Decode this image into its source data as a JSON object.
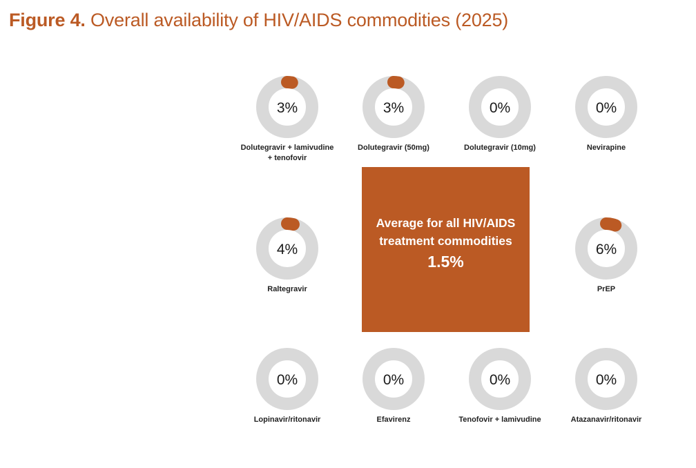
{
  "title": {
    "prefix": "Figure 4.",
    "text": "Overall availability of HIV/AIDS commodities (2025)"
  },
  "colors": {
    "accent": "#bb5a24",
    "ring": "#d9d9d9",
    "label": "#222222"
  },
  "chart_data": {
    "type": "donut-grid",
    "title": "Figure 4. Overall availability of HIV/AIDS commodities (2025)",
    "unit": "%",
    "items": [
      {
        "label": [
          "Dolutegravir + lamivudine",
          "+ tenofovir"
        ],
        "value": 3,
        "display": "3%"
      },
      {
        "label": [
          "Dolutegravir (50mg)"
        ],
        "value": 3,
        "display": "3%"
      },
      {
        "label": [
          "Dolutegravir (10mg)"
        ],
        "value": 0,
        "display": "0%"
      },
      {
        "label": [
          "Nevirapine"
        ],
        "value": 0,
        "display": "0%"
      },
      {
        "label": [
          "Raltegravir"
        ],
        "value": 4,
        "display": "4%"
      },
      {
        "label": [
          "PrEP"
        ],
        "value": 6,
        "display": "6%"
      },
      {
        "label": [
          "Lopinavir/ritonavir"
        ],
        "value": 0,
        "display": "0%"
      },
      {
        "label": [
          "Efavirenz"
        ],
        "value": 0,
        "display": "0%"
      },
      {
        "label": [
          "Tenofovir + lamivudine"
        ],
        "value": 0,
        "display": "0%"
      },
      {
        "label": [
          "Atazanavir/ritonavir"
        ],
        "value": 0,
        "display": "0%"
      }
    ],
    "summary": {
      "line1": "Average for all HIV/AIDS",
      "line2": "treatment commodities",
      "value": 1.5,
      "display": "1.5%"
    }
  }
}
